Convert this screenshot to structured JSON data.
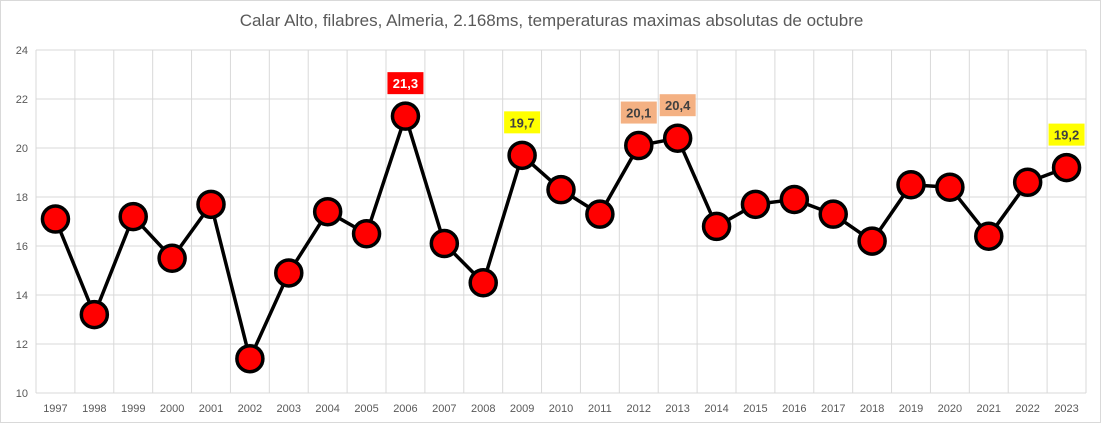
{
  "chart_data": {
    "type": "line",
    "title": "Calar Alto, filabres, Almeria, 2.168ms, temperaturas maximas absolutas de octubre",
    "xlabel": "",
    "ylabel": "",
    "ylim": [
      10,
      24
    ],
    "yticks": [
      10,
      12,
      14,
      16,
      18,
      20,
      22,
      24
    ],
    "grid": true,
    "categories": [
      "1997",
      "1998",
      "1999",
      "2000",
      "2001",
      "2002",
      "2003",
      "2004",
      "2005",
      "2006",
      "2007",
      "2008",
      "2009",
      "2010",
      "2011",
      "2012",
      "2013",
      "2014",
      "2015",
      "2016",
      "2017",
      "2018",
      "2019",
      "2020",
      "2021",
      "2022",
      "2023"
    ],
    "series": [
      {
        "values": [
          17.1,
          13.2,
          17.2,
          15.5,
          17.7,
          11.4,
          14.9,
          17.4,
          16.5,
          21.3,
          16.1,
          14.5,
          19.7,
          18.3,
          17.3,
          20.1,
          20.4,
          16.8,
          17.7,
          17.9,
          17.3,
          16.2,
          18.5,
          18.4,
          16.4,
          18.6,
          19.2
        ],
        "line_color": "#000000",
        "marker_color": "#ff0000"
      }
    ],
    "annotations": [
      {
        "category": "2006",
        "text": "21,3",
        "bg": "#ff0000",
        "color": "#ffffff"
      },
      {
        "category": "2009",
        "text": "19,7",
        "bg": "#ffff00",
        "color": "#404040"
      },
      {
        "category": "2012",
        "text": "20,1",
        "bg": "#f4b183",
        "color": "#404040"
      },
      {
        "category": "2013",
        "text": "20,4",
        "bg": "#f4b183",
        "color": "#404040"
      },
      {
        "category": "2023",
        "text": "19,2",
        "bg": "#ffff00",
        "color": "#404040"
      }
    ]
  }
}
